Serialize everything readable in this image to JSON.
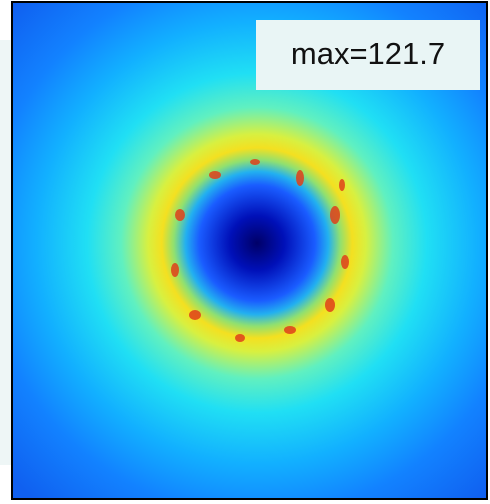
{
  "label": "max=121.7"
}
